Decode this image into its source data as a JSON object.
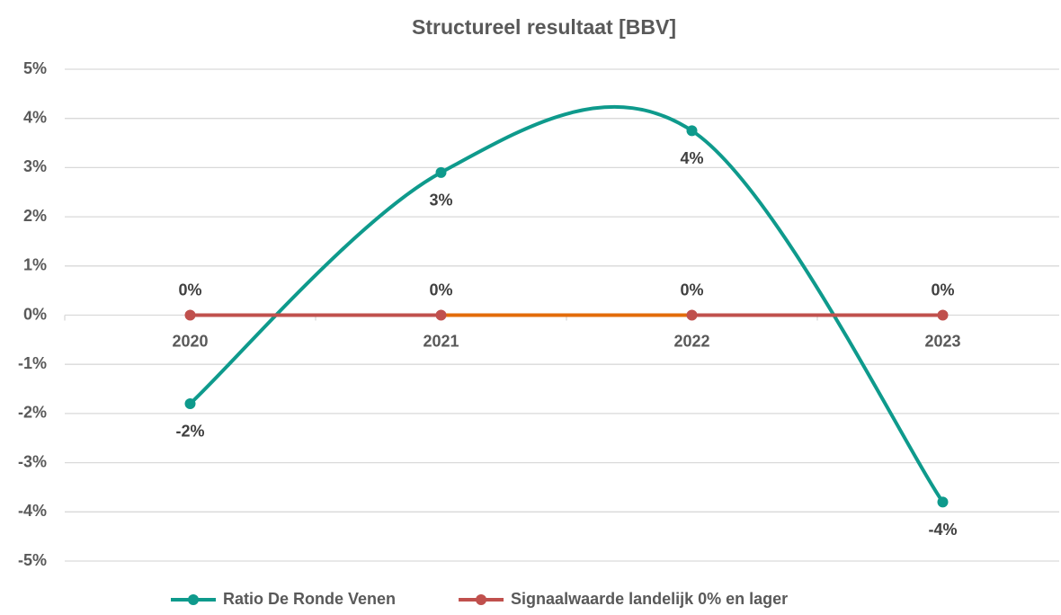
{
  "chart_data": {
    "type": "line",
    "title": "Structureel resultaat [BBV]",
    "categories": [
      "2020",
      "2021",
      "2022",
      "2023"
    ],
    "series": [
      {
        "name": "Ratio De Ronde Venen",
        "color": "#0e9a8c",
        "smooth": true,
        "values": [
          -1.8,
          2.9,
          3.75,
          -3.8
        ],
        "value_labels": [
          "-2%",
          "3%",
          "4%",
          "-4%"
        ],
        "label_position": "below"
      },
      {
        "name": "Signaalwaarde landelijk 0% en lager",
        "color": "#c0504d",
        "smooth": false,
        "segment_colors": [
          "#c0504d",
          "#e36c0a",
          "#c0504d"
        ],
        "values": [
          0,
          0,
          0,
          0
        ],
        "value_labels": [
          "0%",
          "0%",
          "0%",
          "0%"
        ],
        "label_position": "above"
      }
    ],
    "ylim": [
      -5,
      5
    ],
    "yticks": [
      {
        "value": -5,
        "label": "-5%"
      },
      {
        "value": -4,
        "label": "-4%"
      },
      {
        "value": -3,
        "label": "-3%"
      },
      {
        "value": -2,
        "label": "-2%"
      },
      {
        "value": -1,
        "label": "-1%"
      },
      {
        "value": 0,
        "label": "0%"
      },
      {
        "value": 1,
        "label": "1%"
      },
      {
        "value": 2,
        "label": "2%"
      },
      {
        "value": 3,
        "label": "3%"
      },
      {
        "value": 4,
        "label": "4%"
      },
      {
        "value": 5,
        "label": "5%"
      }
    ],
    "grid": true,
    "legend": "bottom"
  }
}
